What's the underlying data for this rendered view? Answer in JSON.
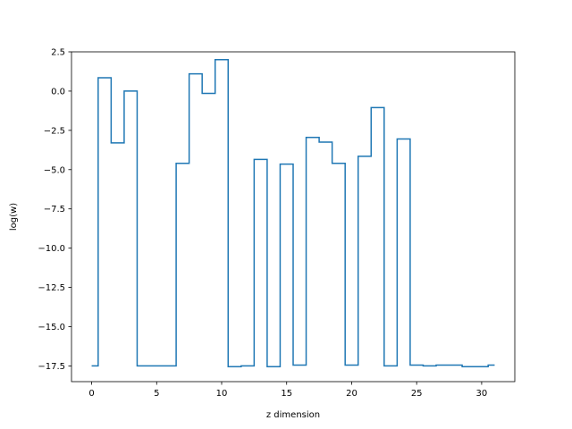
{
  "chart_data": {
    "type": "line",
    "style": "step-mid",
    "title": "",
    "xlabel": "z dimension",
    "ylabel": "log(w)",
    "xlim": [
      -1.55,
      32.55
    ],
    "ylim": [
      -18.5,
      2.5
    ],
    "grid": false,
    "xticks": [
      0,
      5,
      10,
      15,
      20,
      25,
      30
    ],
    "xtick_labels": [
      "0",
      "5",
      "10",
      "15",
      "20",
      "25",
      "30"
    ],
    "yticks": [
      2.5,
      0.0,
      -2.5,
      -5.0,
      -7.5,
      -10.0,
      -12.5,
      -15.0,
      -17.5
    ],
    "ytick_labels": [
      "2.5",
      "0.0",
      "−2.5",
      "−5.0",
      "−7.5",
      "−10.0",
      "−12.5",
      "−15.0",
      "−17.5"
    ],
    "series": [
      {
        "color": "#1f77b4",
        "x": [
          0,
          1,
          2,
          3,
          4,
          5,
          6,
          7,
          8,
          9,
          10,
          11,
          12,
          13,
          14,
          15,
          16,
          17,
          18,
          19,
          20,
          21,
          22,
          23,
          24,
          25,
          26,
          27,
          28,
          29,
          30,
          31
        ],
        "values": [
          -17.5,
          0.85,
          -3.3,
          0.0,
          -17.5,
          -17.5,
          -17.5,
          -4.6,
          1.1,
          -0.15,
          2.0,
          -17.55,
          -17.5,
          -4.35,
          -17.55,
          -4.65,
          -17.45,
          -2.95,
          -3.25,
          -4.6,
          -17.45,
          -4.15,
          -1.05,
          -17.5,
          -3.05,
          -17.45,
          -17.5,
          -17.45,
          -17.45,
          -17.55,
          -17.55,
          -17.45
        ]
      }
    ]
  }
}
